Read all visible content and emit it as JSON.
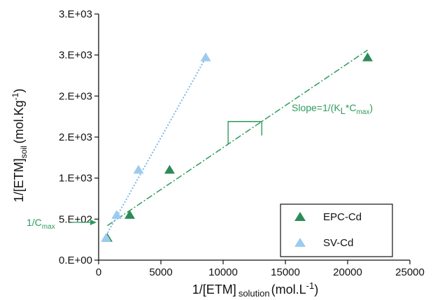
{
  "colors": {
    "epc": "#2e8b57",
    "sv": "#9ccbf0",
    "sv_line": "#7fb8ea",
    "annotation": "#2e9a5c",
    "axis": "#111111"
  },
  "chart_data": {
    "type": "scatter",
    "xlabel": {
      "main": "1/[ETM]",
      "sub": "solution",
      "unit": "(mol.L",
      "sup": "-1",
      "close": ")"
    },
    "ylabel": {
      "main": "1/[ETM]",
      "sub": "soil",
      "unit": "(mol.Kg",
      "sup": "-1",
      "close": ")"
    },
    "xlim": [
      0,
      25000
    ],
    "ylim": [
      0,
      3000
    ],
    "x_ticks": [
      {
        "value": 0,
        "label": "0"
      },
      {
        "value": 5000,
        "label": "5000"
      },
      {
        "value": 10000,
        "label": "10000"
      },
      {
        "value": 15000,
        "label": "15000"
      },
      {
        "value": 20000,
        "label": "20000"
      },
      {
        "value": 25000,
        "label": "25000"
      }
    ],
    "y_ticks": [
      {
        "value": 0,
        "label": "0.E+00"
      },
      {
        "value": 500,
        "label": "5.E+02"
      },
      {
        "value": 1000,
        "label": "1.E+03"
      },
      {
        "value": 1500,
        "label": "2.E+03"
      },
      {
        "value": 2000,
        "label": "2.E+03"
      },
      {
        "value": 2500,
        "label": "3.E+03"
      },
      {
        "value": 3000,
        "label": "3.E+03"
      }
    ],
    "grid": false,
    "legend": {
      "position": "bottom-right"
    },
    "series": [
      {
        "name": "EPC-Cd",
        "marker": "triangle",
        "color": "#2e8b57",
        "x": [
          700,
          2500,
          5700,
          21600
        ],
        "y": [
          270,
          550,
          1100,
          2470
        ],
        "fit": {
          "x": [
            700,
            21600
          ],
          "y": [
            420,
            2560
          ],
          "style": "dash-dot"
        }
      },
      {
        "name": "SV-Cd",
        "marker": "triangle",
        "color": "#9ccbf0",
        "x": [
          600,
          1450,
          3200,
          8600
        ],
        "y": [
          270,
          550,
          1100,
          2470
        ],
        "fit": {
          "x": [
            600,
            8650
          ],
          "y": [
            300,
            2480
          ],
          "style": "dotted"
        }
      }
    ],
    "annotations": {
      "slope": {
        "text": "Slope=1/(K",
        "sub1": "L",
        "mid": "*C",
        "sub2": "max",
        "close": ")"
      },
      "intercept": {
        "text": "1/C",
        "sub": "max"
      }
    }
  }
}
